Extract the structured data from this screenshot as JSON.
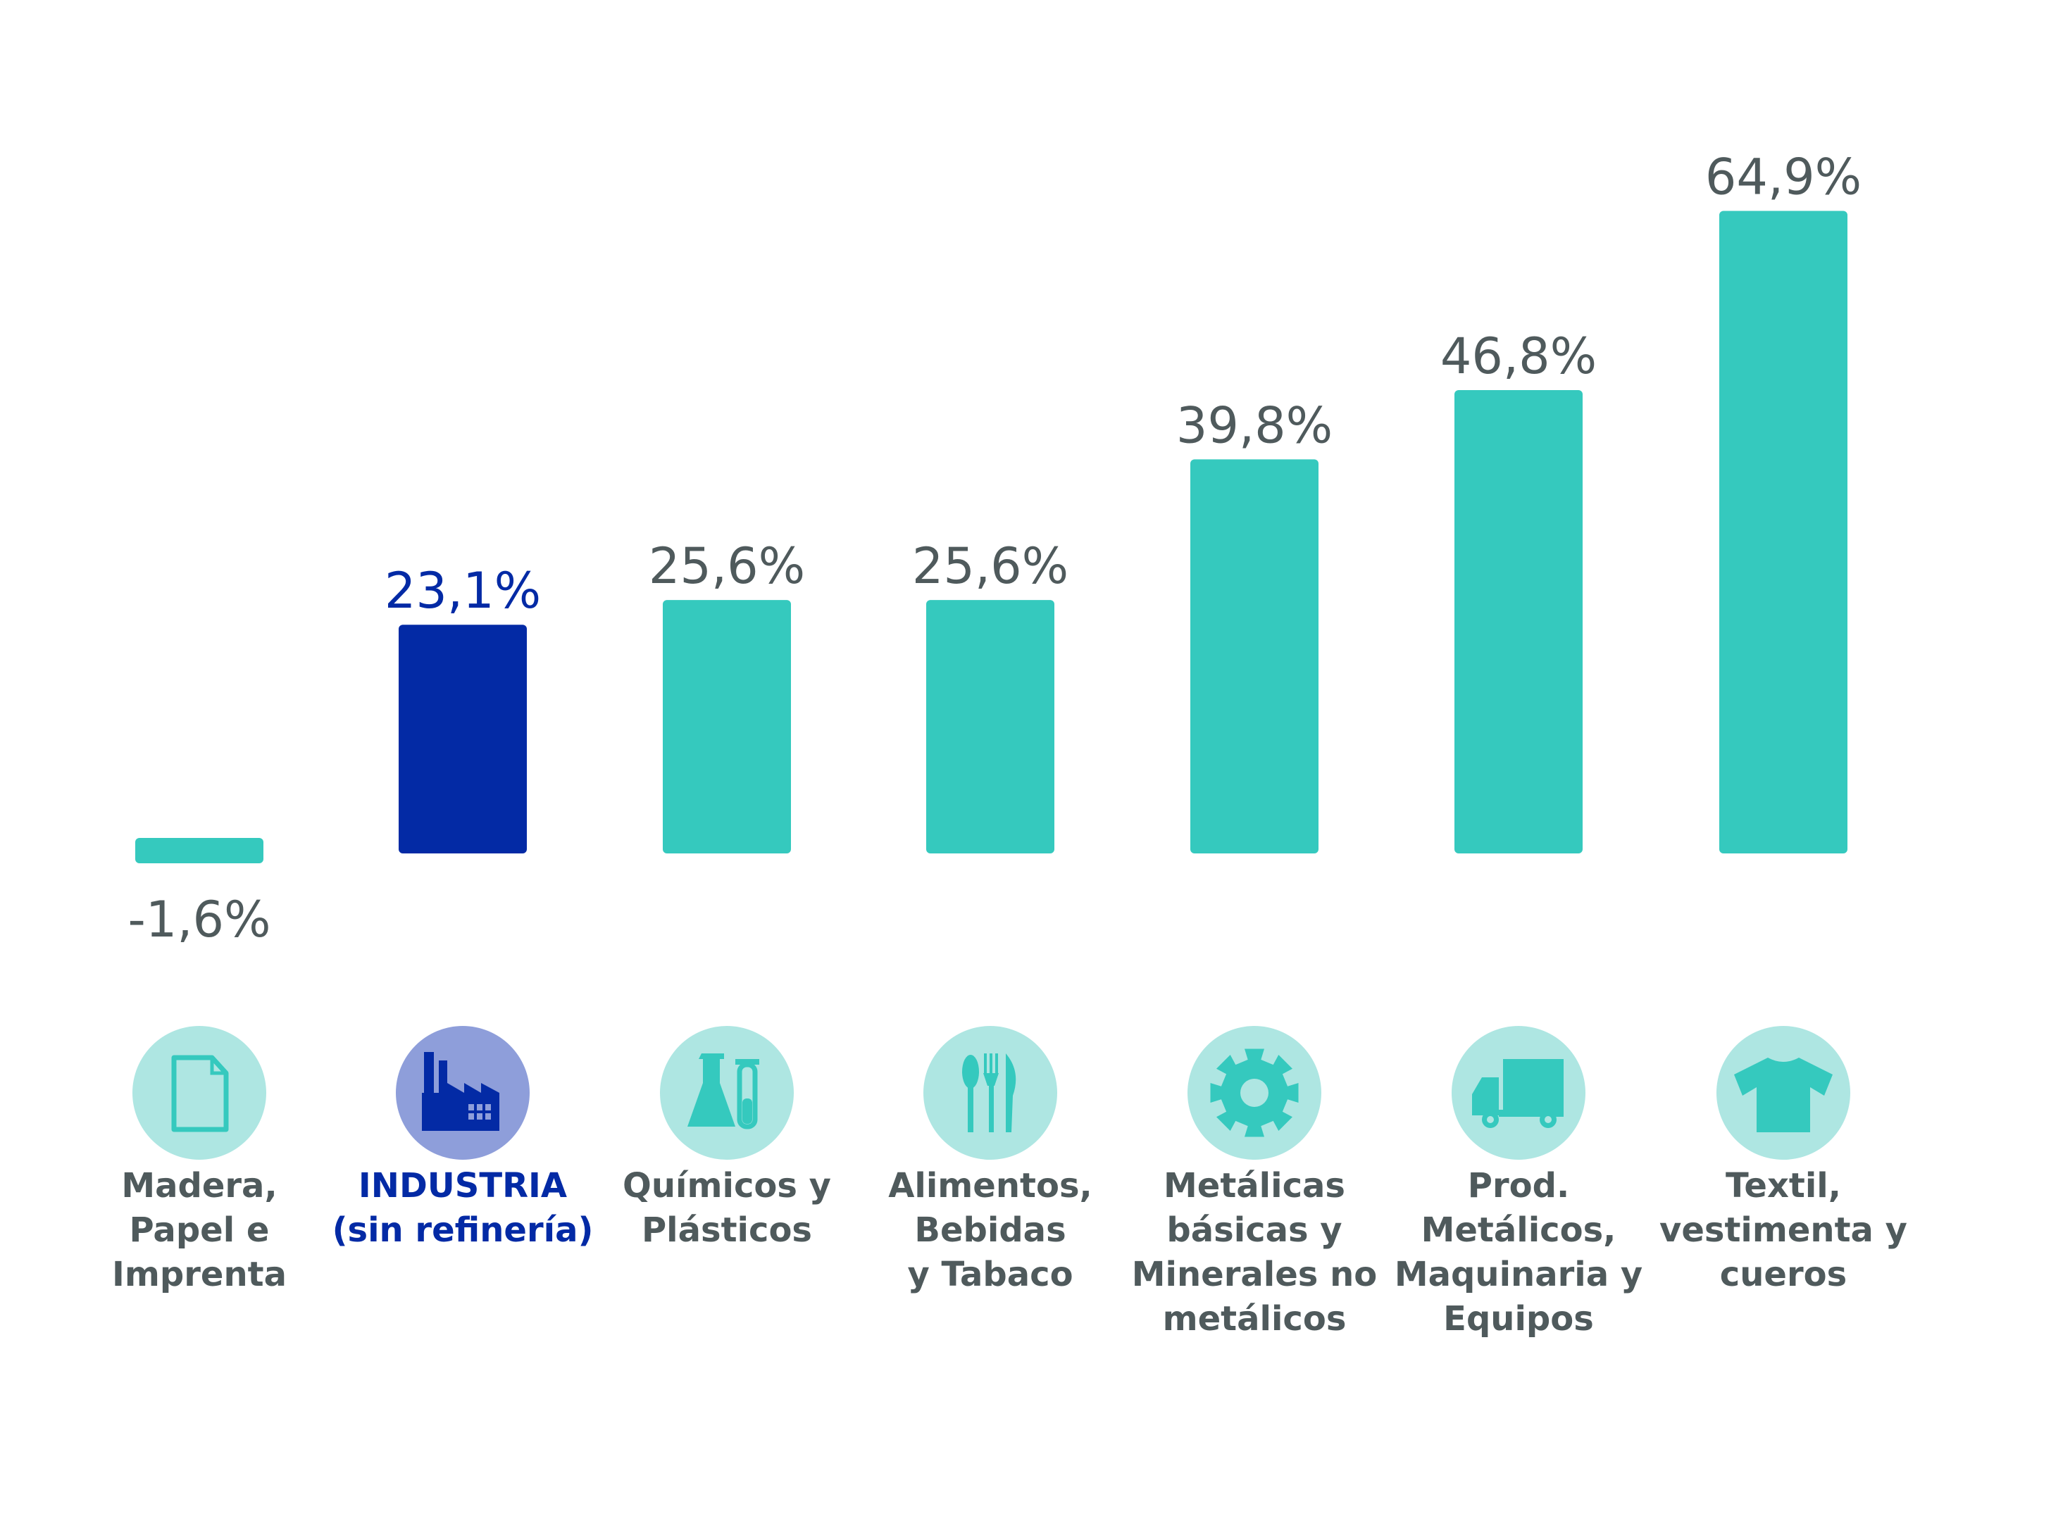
{
  "chart_data": {
    "type": "bar",
    "categories": [
      [
        "Madera,",
        "Papel e",
        "Imprenta"
      ],
      [
        "INDUSTRIA",
        "(sin refinería)"
      ],
      [
        "Químicos y",
        "Plásticos"
      ],
      [
        "Alimentos,",
        "Bebidas",
        "y Tabaco"
      ],
      [
        "Metálicas",
        "básicas y",
        "Minerales no",
        "metálicos"
      ],
      [
        "Prod.",
        "Metálicos,",
        "Maquinaria y",
        "Equipos"
      ],
      [
        "Textil,",
        "vestimenta y",
        "cueros"
      ]
    ],
    "values": [
      -1.6,
      23.1,
      25.6,
      25.6,
      39.8,
      46.8,
      64.9
    ],
    "value_labels": [
      "-1,6%",
      "23,1%",
      "25,6%",
      "25,6%",
      "39,8%",
      "46,8%",
      "64,9%"
    ],
    "icons": [
      "document-icon",
      "factory-icon",
      "flask-icon",
      "cutlery-icon",
      "gear-icon",
      "truck-icon",
      "shirt-icon"
    ],
    "highlight_index": 1,
    "title": "",
    "xlabel": "",
    "ylabel": "",
    "ylim": [
      -5,
      70
    ],
    "grid": false,
    "legend": "none"
  },
  "colors": {
    "bar": "#35C9BE",
    "highlight_bar": "#032AA5",
    "icon_circle": "#AEE6E2",
    "icon_fill": "#35C9BE",
    "highlight_icon_circle": "#8E9EDA",
    "highlight_icon_fill": "#032AA5",
    "value_text": "#4F5A5C",
    "category_text": "#4F5A5C",
    "highlight_text": "#032AA5"
  }
}
